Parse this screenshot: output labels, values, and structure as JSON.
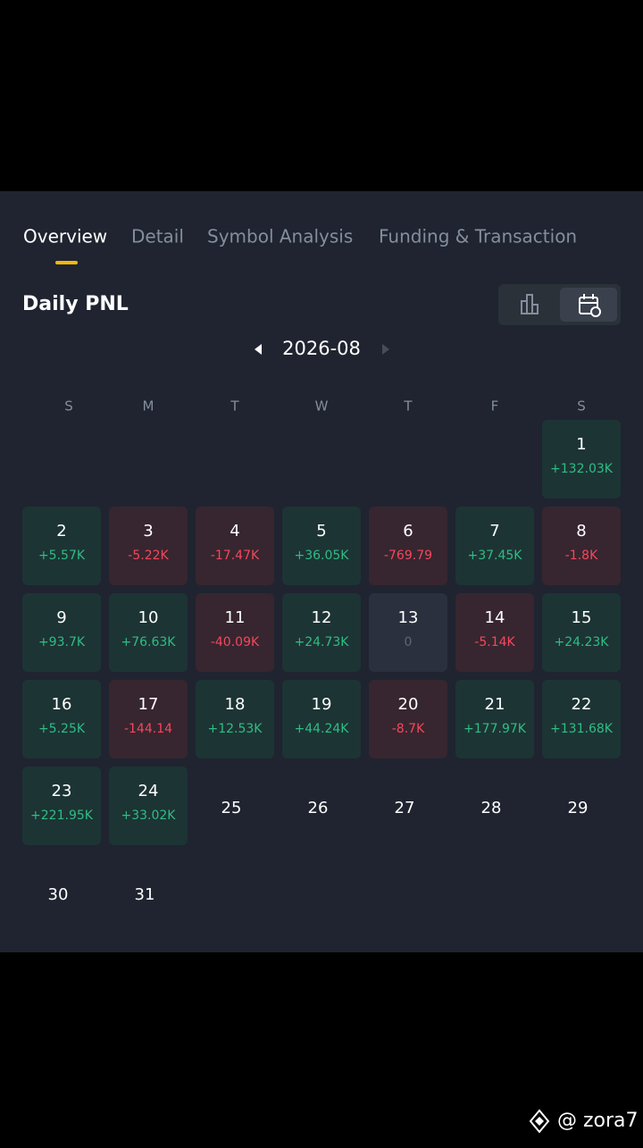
{
  "tabs": [
    "Overview",
    "Detail",
    "Symbol Analysis",
    "Funding & Transaction"
  ],
  "section_title": "Daily PNL",
  "month": "2026-08",
  "calendar": {
    "weekdays": [
      "S",
      "M",
      "T",
      "W",
      "T",
      "F",
      "S"
    ],
    "days": [
      {
        "day": 1,
        "pnl": "+132.03K"
      },
      {
        "day": 2,
        "pnl": "+5.57K"
      },
      {
        "day": 3,
        "pnl": "-5.22K"
      },
      {
        "day": 4,
        "pnl": "-17.47K"
      },
      {
        "day": 5,
        "pnl": "+36.05K"
      },
      {
        "day": 6,
        "pnl": "-769.79"
      },
      {
        "day": 7,
        "pnl": "+37.45K"
      },
      {
        "day": 8,
        "pnl": "-1.8K"
      },
      {
        "day": 9,
        "pnl": "+93.7K"
      },
      {
        "day": 10,
        "pnl": "+76.63K"
      },
      {
        "day": 11,
        "pnl": "-40.09K"
      },
      {
        "day": 12,
        "pnl": "+24.73K"
      },
      {
        "day": 13,
        "pnl": "0"
      },
      {
        "day": 14,
        "pnl": "-5.14K"
      },
      {
        "day": 15,
        "pnl": "+24.23K"
      },
      {
        "day": 16,
        "pnl": "+5.25K"
      },
      {
        "day": 17,
        "pnl": "-144.14"
      },
      {
        "day": 18,
        "pnl": "+12.53K"
      },
      {
        "day": 19,
        "pnl": "+44.24K"
      },
      {
        "day": 20,
        "pnl": "-8.7K"
      },
      {
        "day": 21,
        "pnl": "+177.97K"
      },
      {
        "day": 22,
        "pnl": "+131.68K"
      },
      {
        "day": 23,
        "pnl": "+221.95K"
      },
      {
        "day": 24,
        "pnl": "+33.02K"
      },
      {
        "day": 25
      },
      {
        "day": 26
      },
      {
        "day": 27
      },
      {
        "day": 28
      },
      {
        "day": 29
      },
      {
        "day": 30
      },
      {
        "day": 31
      }
    ]
  },
  "watermark": "@ zora7"
}
